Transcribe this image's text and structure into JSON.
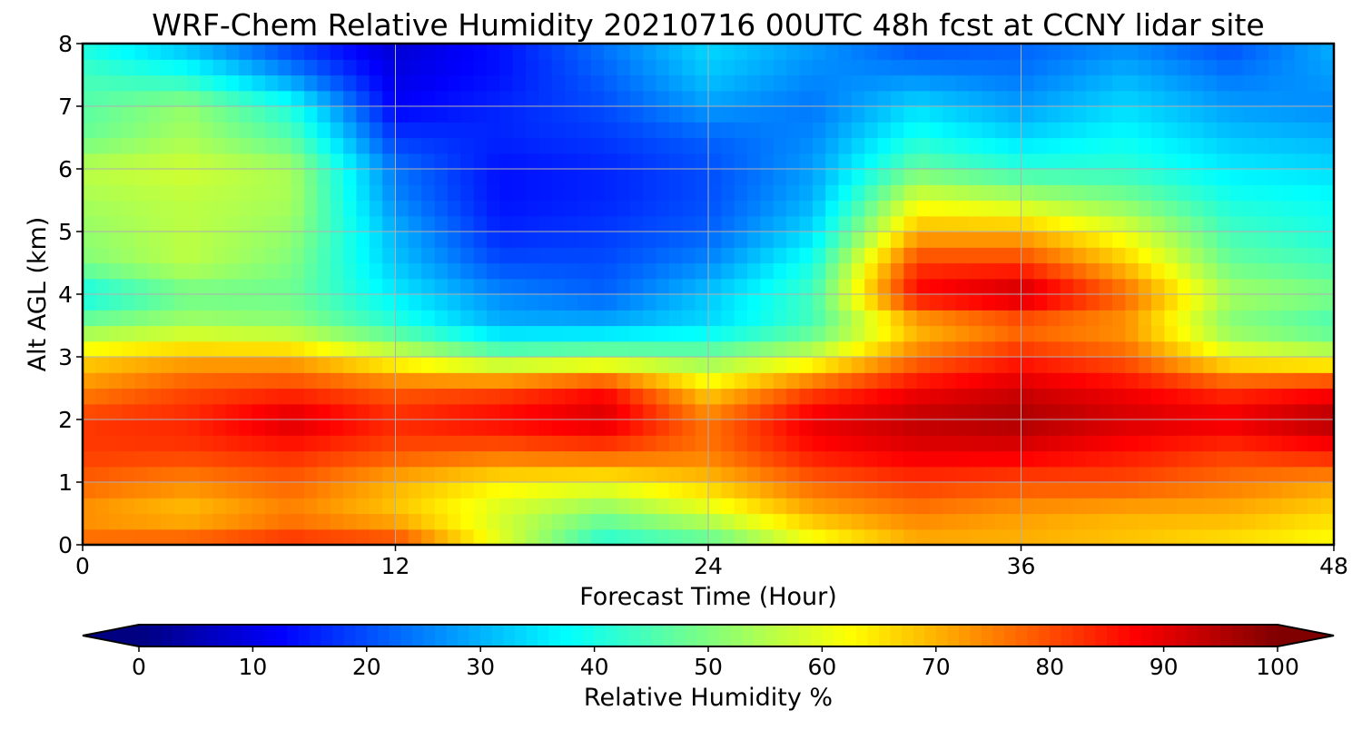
{
  "chart_data": {
    "type": "heatmap",
    "title": "WRF-Chem Relative Humidity 20210716 00UTC 48h fcst at CCNY lidar site",
    "xlabel": "Forecast Time (Hour)",
    "ylabel": "Alt AGL (km)",
    "xlim": [
      0,
      48
    ],
    "ylim": [
      0,
      8
    ],
    "x_ticks": [
      0,
      12,
      24,
      36,
      48
    ],
    "y_ticks": [
      0,
      1,
      2,
      3,
      4,
      5,
      6,
      7,
      8
    ],
    "grid": true,
    "x": [
      0,
      4,
      8,
      12,
      16,
      20,
      24,
      28,
      32,
      36,
      40,
      44,
      48
    ],
    "y": [
      0,
      0.5,
      1,
      1.5,
      2,
      2.5,
      3,
      3.5,
      4,
      4.5,
      5,
      5.5,
      6,
      6.5,
      7,
      7.5,
      8
    ],
    "z": [
      [
        78,
        80,
        84,
        82,
        60,
        40,
        45,
        60,
        70,
        70,
        68,
        65,
        62
      ],
      [
        72,
        68,
        74,
        68,
        58,
        50,
        58,
        70,
        75,
        72,
        70,
        70,
        66
      ],
      [
        78,
        74,
        78,
        70,
        64,
        62,
        68,
        78,
        82,
        80,
        80,
        76,
        72
      ],
      [
        82,
        82,
        84,
        80,
        78,
        80,
        76,
        86,
        90,
        90,
        86,
        82,
        86
      ],
      [
        82,
        84,
        92,
        84,
        88,
        92,
        76,
        90,
        94,
        96,
        92,
        90,
        96
      ],
      [
        74,
        80,
        82,
        78,
        80,
        86,
        66,
        80,
        88,
        92,
        88,
        82,
        86
      ],
      [
        66,
        70,
        70,
        60,
        50,
        52,
        50,
        58,
        76,
        84,
        78,
        62,
        58
      ],
      [
        50,
        54,
        52,
        42,
        30,
        30,
        34,
        44,
        68,
        76,
        72,
        50,
        44
      ],
      [
        38,
        48,
        48,
        36,
        26,
        22,
        32,
        44,
        88,
        94,
        78,
        54,
        50
      ],
      [
        50,
        56,
        50,
        32,
        20,
        20,
        26,
        40,
        82,
        82,
        68,
        48,
        44
      ],
      [
        52,
        56,
        52,
        30,
        16,
        18,
        22,
        34,
        70,
        70,
        60,
        44,
        40
      ],
      [
        54,
        56,
        54,
        26,
        14,
        16,
        20,
        30,
        60,
        56,
        50,
        40,
        38
      ],
      [
        56,
        58,
        54,
        24,
        14,
        16,
        20,
        28,
        48,
        42,
        42,
        36,
        34
      ],
      [
        48,
        54,
        46,
        18,
        16,
        18,
        22,
        26,
        40,
        34,
        38,
        32,
        30
      ],
      [
        46,
        52,
        40,
        12,
        16,
        20,
        28,
        24,
        34,
        28,
        34,
        28,
        26
      ],
      [
        44,
        40,
        26,
        10,
        14,
        22,
        32,
        26,
        26,
        24,
        30,
        24,
        28
      ],
      [
        40,
        30,
        18,
        8,
        14,
        24,
        34,
        28,
        20,
        22,
        26,
        20,
        30
      ]
    ],
    "colorbar": {
      "label": "Relative Humidity %",
      "min": 0,
      "max": 100,
      "ticks": [
        0,
        10,
        20,
        30,
        40,
        50,
        60,
        70,
        80,
        90,
        100
      ],
      "extend": "both",
      "colormap": "jet"
    }
  }
}
